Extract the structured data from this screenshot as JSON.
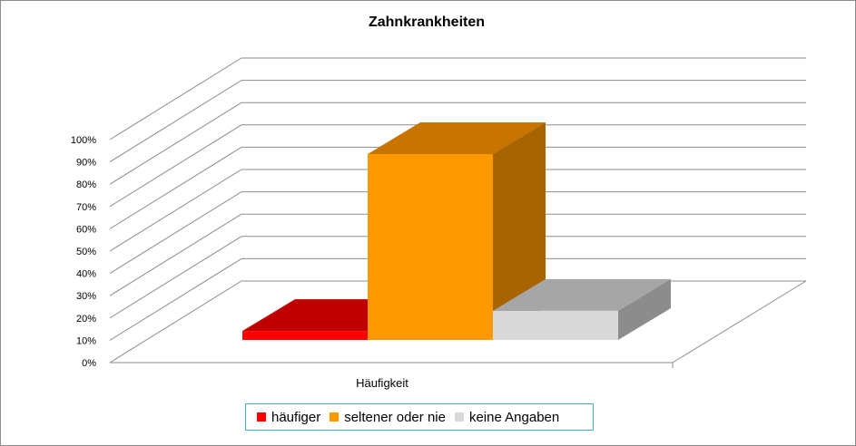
{
  "chart_data": {
    "type": "bar",
    "title": "Zahnkrankheiten",
    "categories": [
      "Häufigkeit"
    ],
    "series": [
      {
        "name": "häufiger",
        "values": [
          4
        ],
        "color": "#ff0000",
        "side": "#990000",
        "top": "#c00000"
      },
      {
        "name": "seltener oder nie",
        "values": [
          83
        ],
        "color": "#ff9900",
        "side": "#a86400",
        "top": "#c87400"
      },
      {
        "name": "keine Angaben",
        "values": [
          13
        ],
        "color": "#d9d9d9",
        "side": "#8c8c8c",
        "top": "#a6a6a6"
      }
    ],
    "y_ticks": [
      "0%",
      "10%",
      "20%",
      "30%",
      "40%",
      "50%",
      "60%",
      "70%",
      "80%",
      "90%",
      "100%"
    ],
    "ylim": [
      0,
      100
    ],
    "grid": true,
    "legend": "bottom"
  }
}
